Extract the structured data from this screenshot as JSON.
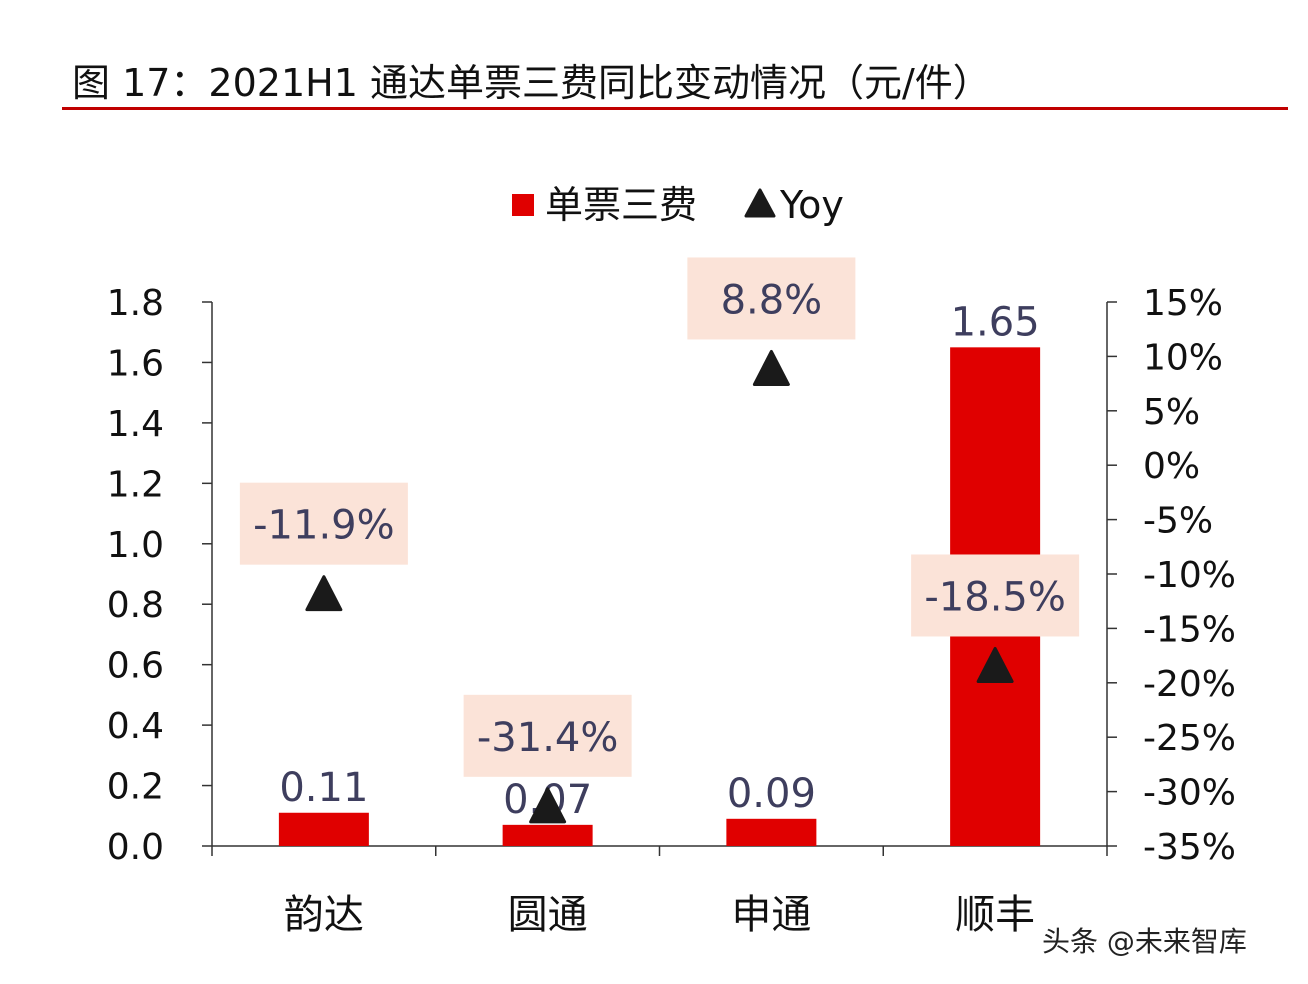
{
  "title": "图 17：2021H1 通达单票三费同比变动情况（元/件）",
  "watermark": "头条 @未来智库",
  "colors": {
    "bar": "#e00000",
    "marker": "#1a1a1a",
    "label_box": "#fbe3d8",
    "label_text": "#3e3e5e",
    "rule": "#c00000"
  },
  "chart_data": {
    "type": "bar",
    "categories": [
      "韵达",
      "圆通",
      "申通",
      "顺丰"
    ],
    "series": [
      {
        "name": "单票三费",
        "type": "bar",
        "axis": "left",
        "values": [
          0.11,
          0.07,
          0.09,
          1.65
        ],
        "labels": [
          "0.11",
          "0.07",
          "0.09",
          "1.65"
        ]
      },
      {
        "name": "Yoy",
        "type": "scatter",
        "marker": "triangle",
        "axis": "right",
        "values": [
          -11.9,
          -31.4,
          8.8,
          -18.5
        ],
        "labels": [
          "-11.9%",
          "-31.4%",
          "8.8%",
          "-18.5%"
        ]
      }
    ],
    "left_axis": {
      "ylim": [
        0,
        1.8
      ],
      "ticks": [
        "0.0",
        "0.2",
        "0.4",
        "0.6",
        "0.8",
        "1.0",
        "1.2",
        "1.4",
        "1.6",
        "1.8"
      ]
    },
    "right_axis": {
      "ylim": [
        -35,
        15
      ],
      "ticks": [
        "-35%",
        "-30%",
        "-25%",
        "-20%",
        "-15%",
        "-10%",
        "-5%",
        "0%",
        "5%",
        "10%",
        "15%"
      ]
    },
    "legend": {
      "placement": "top-center",
      "entries": [
        "单票三费",
        "Yoy"
      ]
    },
    "grid": false
  }
}
